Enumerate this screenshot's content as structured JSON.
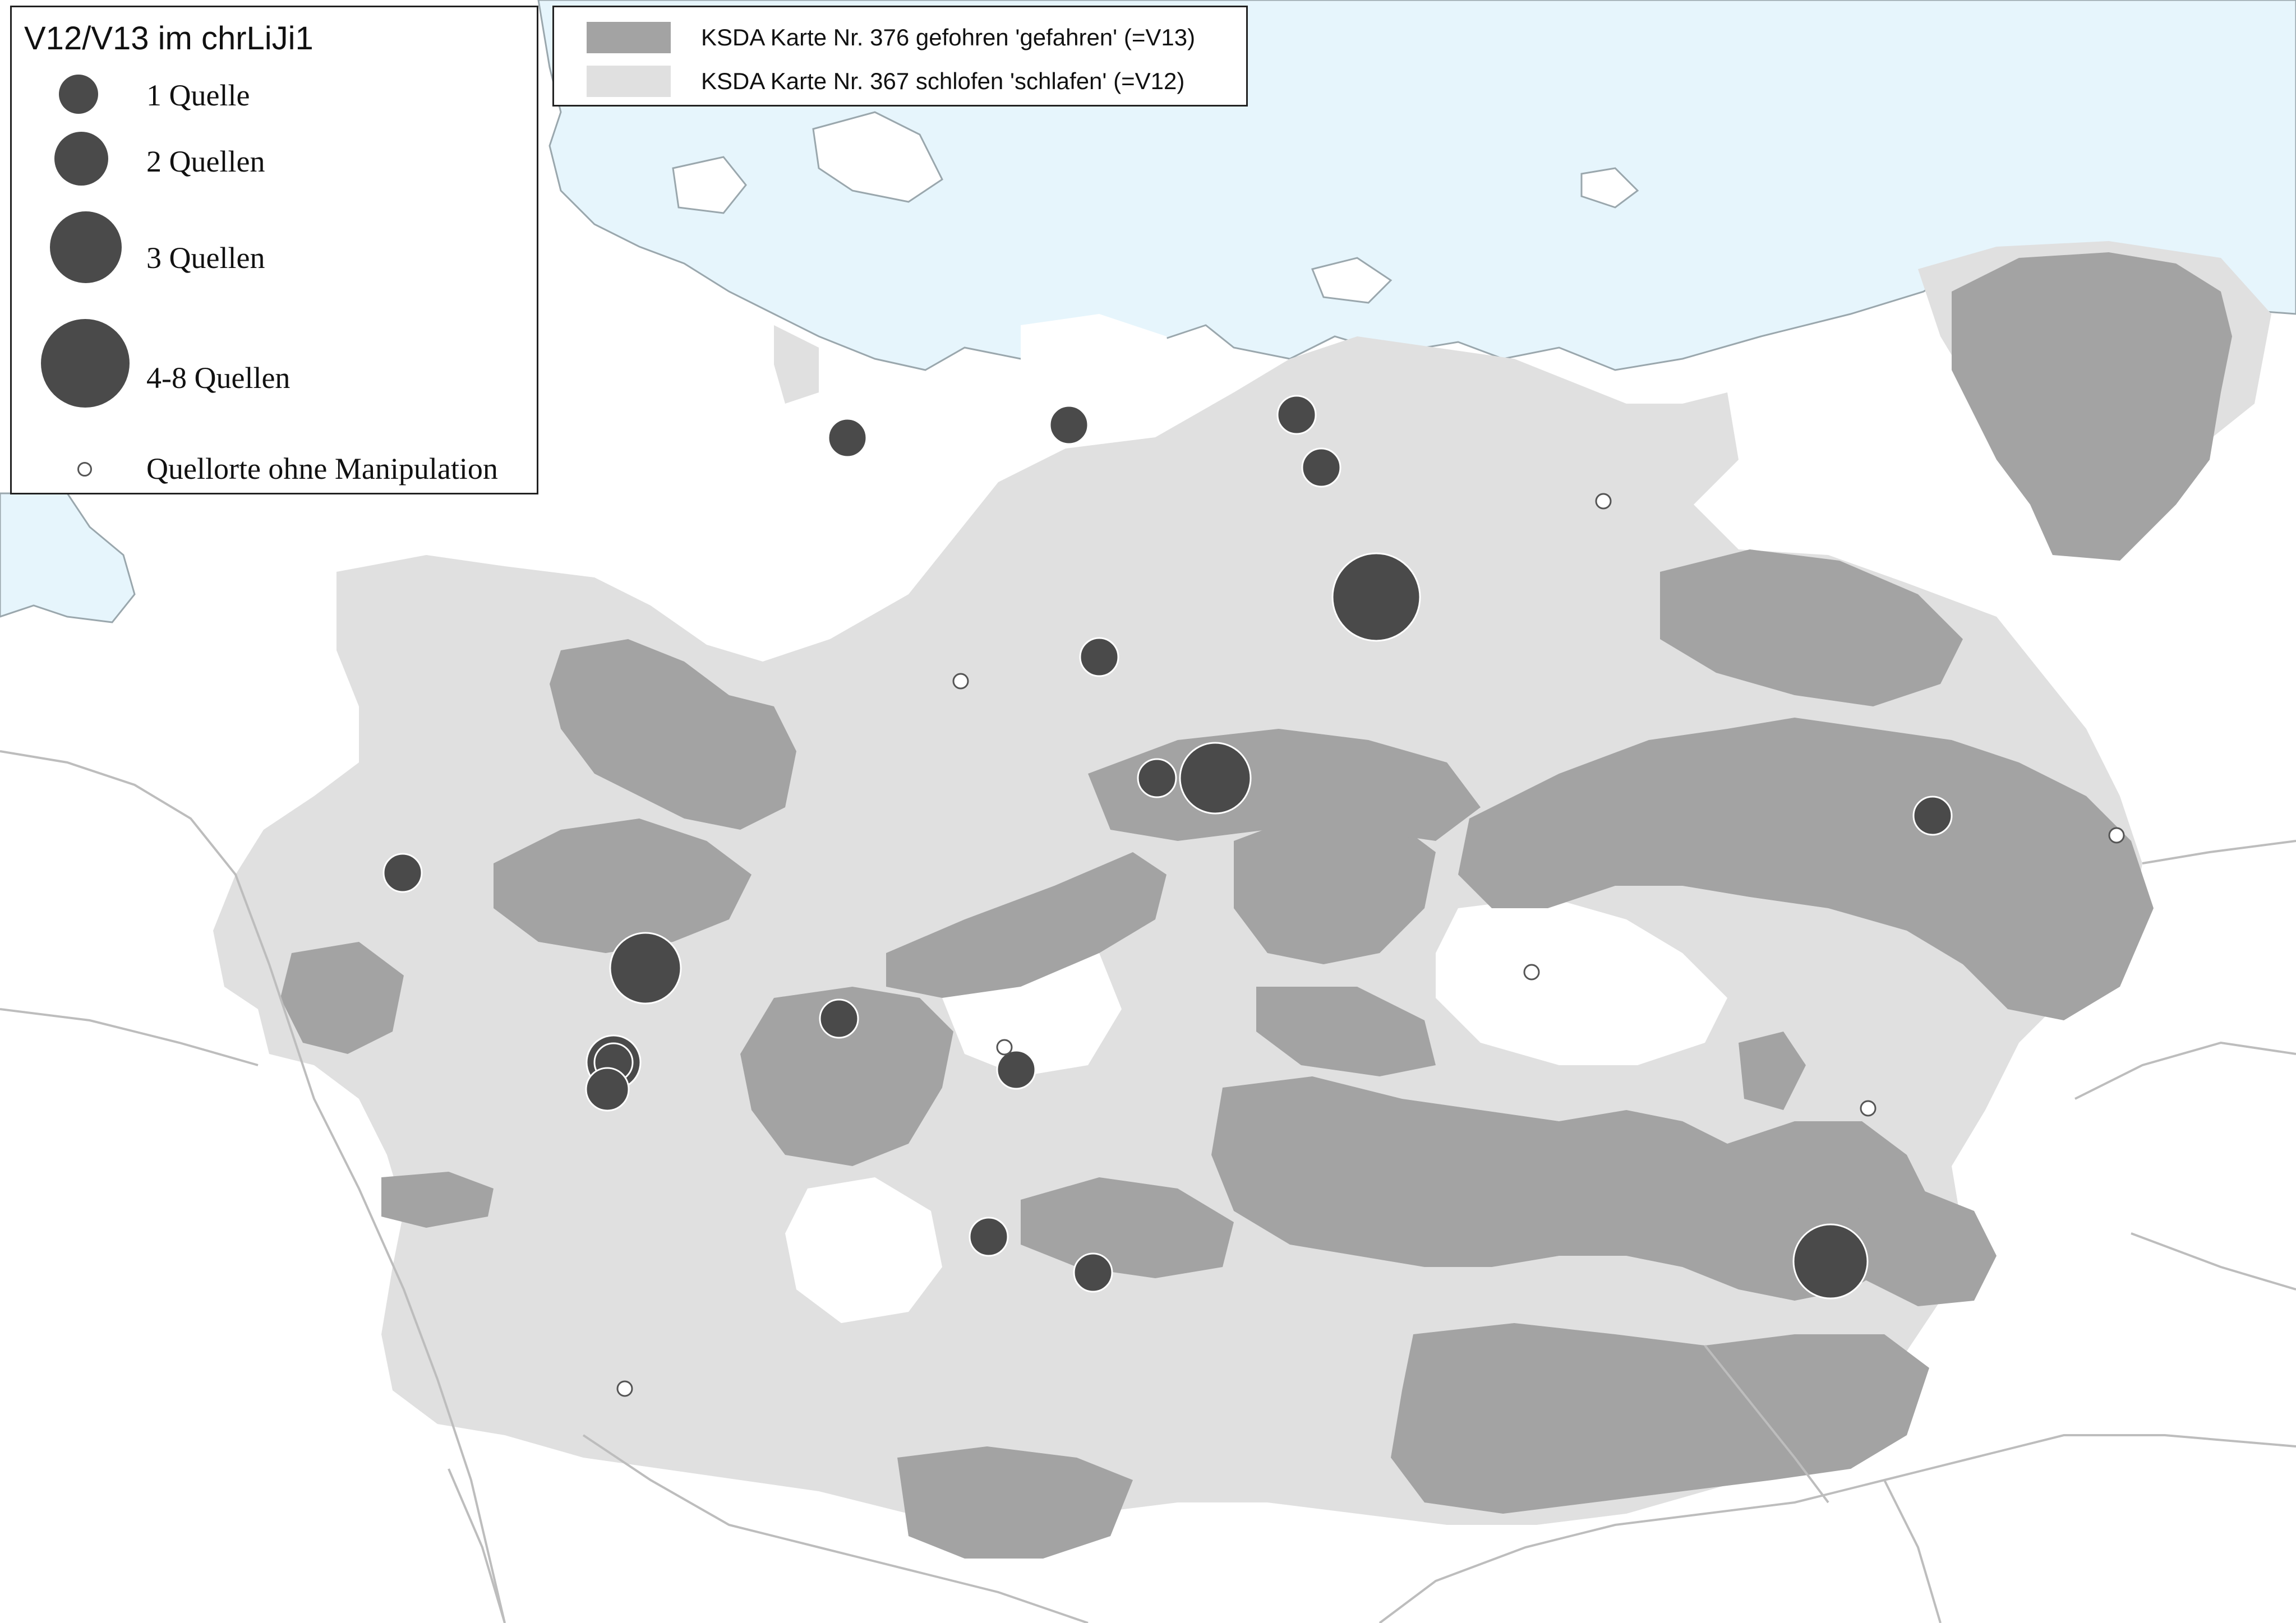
{
  "colors": {
    "sea": "#e6f5fc",
    "land": "#ffffff",
    "v12": "#e0e0e0",
    "v13": "#a3a3a3",
    "border": "#bdbdbd",
    "coast": "#9aa7ad",
    "dot": "#4a4a4a"
  },
  "legend_size": {
    "title": "V12/V13 im chrLiJi1",
    "items": [
      {
        "label": "1 Quelle",
        "sources": 1
      },
      {
        "label": "2 Quellen",
        "sources": 2
      },
      {
        "label": "3 Quellen",
        "sources": 3
      },
      {
        "label": "4-8 Quellen",
        "sources": "4-8"
      },
      {
        "label": "Quellorte ohne Manipulation",
        "sources": 0
      }
    ]
  },
  "legend_areas": {
    "items": [
      {
        "label": "KSDA Karte Nr. 376 gefohren 'gefahren' (=V13)",
        "color": "#a3a3a3"
      },
      {
        "label": "KSDA Karte Nr. 367 schlofen 'schlafen' (=V12)",
        "color": "#e0e0e0"
      }
    ]
  }
}
